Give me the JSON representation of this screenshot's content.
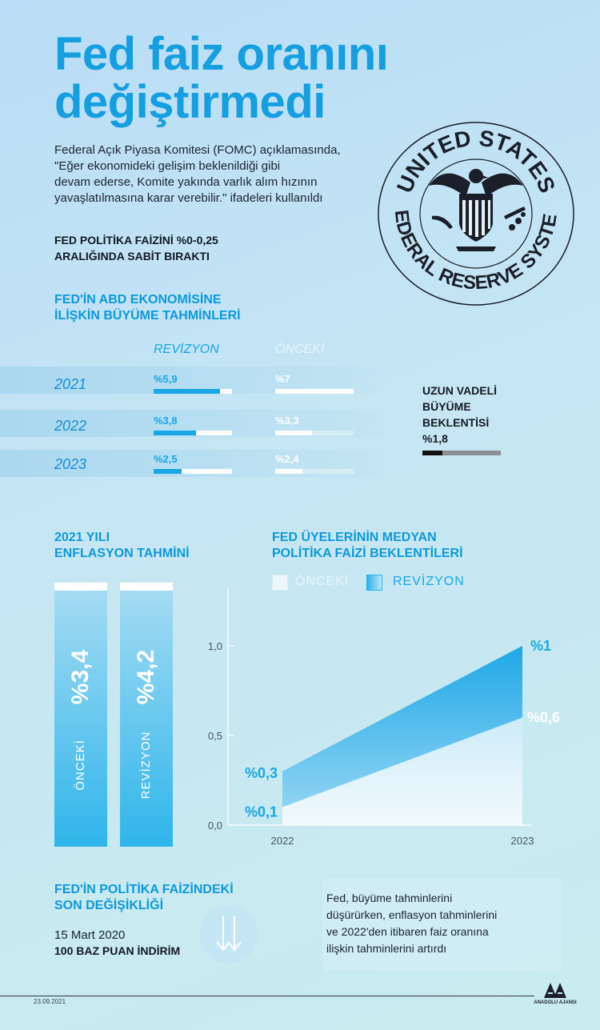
{
  "title": {
    "line1": "Fed faiz oranını",
    "line2": "değiştirmedi"
  },
  "intro": {
    "lines": [
      "Federal Açık Piyasa Komitesi (FOMC) açıklamasında,",
      "\"Eğer ekonomideki gelişim beklenildiği gibi",
      "devam ederse, Komite yakında varlık alım hızının",
      "yavaşlatılmasına karar verebilir.\" ifadeleri kullanıldı"
    ]
  },
  "policy": {
    "line1": "FED POLİTİKA FAİZİNİ %0-0,25",
    "line2": "ARALIĞINDA SABİT BIRAKTI"
  },
  "seal": {
    "top_text": "UNITED STATES",
    "bottom_text": "FEDERAL RESERVE SYSTEM",
    "icon": "eagle-seal-icon"
  },
  "growth": {
    "heading_line1": "FED'İN ABD EKONOMİSİNE",
    "heading_line2": "İLİŞKİN BÜYÜME TAHMİNLERİ",
    "col_revised": "REVİZYON",
    "col_previous": "ÖNCEKİ",
    "rows": [
      {
        "year": "2021",
        "revised_label": "%5,9",
        "revised": 5.9,
        "previous_label": "%7",
        "previous": 7.0
      },
      {
        "year": "2022",
        "revised_label": "%3,8",
        "revised": 3.8,
        "previous_label": "%3,3",
        "previous": 3.3
      },
      {
        "year": "2023",
        "revised_label": "%2,5",
        "revised": 2.5,
        "previous_label": "%2,4",
        "previous": 2.4
      }
    ],
    "long_term": {
      "line1": "UZUN VADELİ",
      "line2": "BÜYÜME",
      "line3": "BEKLENTİSİ",
      "value_label": "%1,8",
      "value": 1.8
    }
  },
  "inflation": {
    "heading_line1": "2021 YILI",
    "heading_line2": "ENFLASYON TAHMİNİ",
    "bars": [
      {
        "value_label": "%3,4",
        "label": "ÖNCEKİ"
      },
      {
        "value_label": "%4,2",
        "label": "REVİZYON"
      }
    ]
  },
  "rate_chart": {
    "heading_line1": "FED ÜYELERİNİN MEDYAN",
    "heading_line2": "POLİTİKA FAİZİ BEKLENTİLERİ",
    "legend_previous": "ÖNCEKİ",
    "legend_revised": "REVİZYON"
  },
  "chart_data": {
    "type": "area",
    "x": [
      "2022",
      "2023"
    ],
    "series": [
      {
        "name": "ÖNCEKİ",
        "values": [
          0.1,
          0.6
        ],
        "labels": [
          "%0,1",
          "%0,6"
        ]
      },
      {
        "name": "REVİZYON",
        "values": [
          0.3,
          1.0
        ],
        "labels": [
          "%0,3",
          "%1"
        ]
      }
    ],
    "y_ticks": [
      "0,0",
      "0,5",
      "1,0"
    ],
    "ylim": [
      0,
      1.0
    ],
    "colors": {
      "previous": "#e8f6fc",
      "revised": "#22aee8"
    }
  },
  "last_change": {
    "heading_line1": "FED'İN POLİTİKA FAİZİNDEKİ",
    "heading_line2": "SON DEĞİŞİKLİĞİ",
    "date": "15 Mart 2020",
    "cut": "100 BAZ PUAN İNDİRİM",
    "icon": "down-arrows-icon"
  },
  "note": {
    "lines": [
      "Fed, büyüme tahminlerini",
      "düşürürken, enflasyon tahminlerini",
      "ve 2022'den itibaren faiz oranına",
      "ilişkin tahminlerini artırdı"
    ]
  },
  "footer": {
    "date": "23.09.2021",
    "logo_text": "ANADOLU AJANSI",
    "logo_icon": "anadolu-ajansi-logo-icon"
  },
  "colors": {
    "accent": "#159ee0",
    "dark": "#141a24",
    "white": "#ffffff"
  }
}
